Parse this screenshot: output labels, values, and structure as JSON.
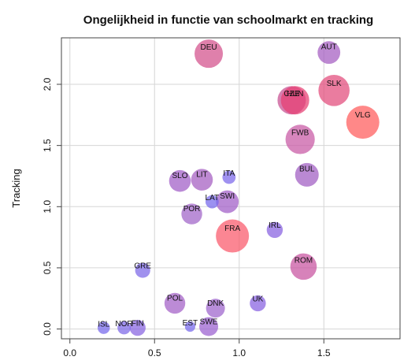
{
  "chart_data": {
    "type": "scatter",
    "title": "Ongelijkheid in functie van schoolmarkt en tracking",
    "xlabel": "",
    "ylabel": "Tracking",
    "xlim": [
      -0.05,
      1.95
    ],
    "ylim": [
      -0.08,
      2.38
    ],
    "xticks": [
      0.0,
      0.5,
      1.0,
      1.5
    ],
    "xtick_labels": [
      "0.0",
      "0.5",
      "1.0",
      "1.5"
    ],
    "yticks": [
      0.0,
      0.5,
      1.0,
      1.5,
      2.0
    ],
    "ytick_labels": [
      "0.0",
      "0.5",
      "1.0",
      "1.5",
      "2.0"
    ],
    "grid": true,
    "colors": {
      "low": "#7b6cf0",
      "high": "#ff5a5a",
      "grid": "#d6d6d6",
      "frame": "#444444"
    },
    "points": [
      {
        "label": "DEU",
        "x": 0.82,
        "y": 2.25,
        "size": 3.0,
        "color": "#d24f8a"
      },
      {
        "label": "AUT",
        "x": 1.53,
        "y": 2.26,
        "size": 2.4,
        "color": "#a45cc0"
      },
      {
        "label": "SLK",
        "x": 1.56,
        "y": 1.95,
        "size": 3.3,
        "color": "#e2497a"
      },
      {
        "label": "CZE",
        "x": 1.31,
        "y": 1.87,
        "size": 3.0,
        "color": "#c64d90"
      },
      {
        "label": "HUN",
        "x": 1.33,
        "y": 1.87,
        "size": 3.0,
        "color": "#e63f72"
      },
      {
        "label": "VLG",
        "x": 1.73,
        "y": 1.69,
        "size": 3.5,
        "color": "#ff5a5a"
      },
      {
        "label": "FWB",
        "x": 1.36,
        "y": 1.55,
        "size": 3.1,
        "color": "#c758a4"
      },
      {
        "label": "BUL",
        "x": 1.4,
        "y": 1.26,
        "size": 2.5,
        "color": "#a05bc2"
      },
      {
        "label": "SLO",
        "x": 0.65,
        "y": 1.21,
        "size": 2.3,
        "color": "#9f5cc6"
      },
      {
        "label": "LIT",
        "x": 0.78,
        "y": 1.22,
        "size": 2.3,
        "color": "#a45cc0"
      },
      {
        "label": "ITA",
        "x": 0.94,
        "y": 1.24,
        "size": 1.4,
        "color": "#7a66ea"
      },
      {
        "label": "SWI",
        "x": 0.93,
        "y": 1.04,
        "size": 2.4,
        "color": "#9f5cc6"
      },
      {
        "label": "LAT",
        "x": 0.84,
        "y": 1.04,
        "size": 1.4,
        "color": "#7566ec"
      },
      {
        "label": "POR",
        "x": 0.72,
        "y": 0.94,
        "size": 2.2,
        "color": "#a062c8"
      },
      {
        "label": "IRL",
        "x": 1.21,
        "y": 0.81,
        "size": 1.7,
        "color": "#8660e0"
      },
      {
        "label": "FRA",
        "x": 0.96,
        "y": 0.76,
        "size": 3.5,
        "color": "#f9576a"
      },
      {
        "label": "ROM",
        "x": 1.38,
        "y": 0.51,
        "size": 2.8,
        "color": "#c852a0"
      },
      {
        "label": "GRE",
        "x": 0.43,
        "y": 0.48,
        "size": 1.6,
        "color": "#7b66e8"
      },
      {
        "label": "POL",
        "x": 0.62,
        "y": 0.21,
        "size": 2.2,
        "color": "#a25ec6"
      },
      {
        "label": "UK",
        "x": 1.11,
        "y": 0.21,
        "size": 1.7,
        "color": "#8660e0"
      },
      {
        "label": "DNK",
        "x": 0.86,
        "y": 0.17,
        "size": 2.0,
        "color": "#9d62cc"
      },
      {
        "label": "EST",
        "x": 0.71,
        "y": 0.02,
        "size": 1.1,
        "color": "#7566ec"
      },
      {
        "label": "SWE",
        "x": 0.82,
        "y": 0.02,
        "size": 2.0,
        "color": "#9a5ed0"
      },
      {
        "label": "ISL",
        "x": 0.2,
        "y": 0.01,
        "size": 1.3,
        "color": "#7566ec"
      },
      {
        "label": "NOR",
        "x": 0.32,
        "y": 0.01,
        "size": 1.4,
        "color": "#7c66e8"
      },
      {
        "label": "FIN",
        "x": 0.4,
        "y": 0.01,
        "size": 1.7,
        "color": "#8662e0"
      }
    ]
  }
}
